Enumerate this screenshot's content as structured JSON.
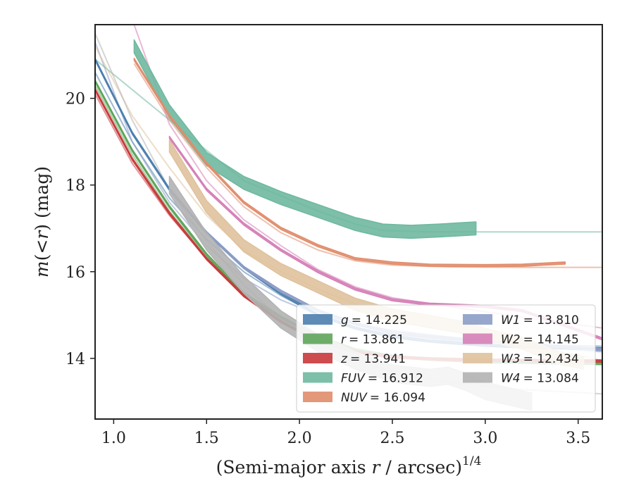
{
  "chart_data": {
    "type": "line",
    "xlabel_main": "(Semi-major axis ",
    "xlabel_r": "r",
    "xlabel_tail": " / arcsec)",
    "xlabel_sup": "1/4",
    "ylabel_m": "m",
    "ylabel_mid": "(<",
    "ylabel_r": "r",
    "ylabel_tail": ") (mag)",
    "xlim": [
      0.9,
      3.63
    ],
    "ylim": [
      21.7,
      12.6
    ],
    "x_inverted": false,
    "y_inverted": true,
    "xticks": [
      1.0,
      1.5,
      2.0,
      2.5,
      3.0,
      3.5
    ],
    "xtick_labels": [
      "1.0",
      "1.5",
      "2.0",
      "2.5",
      "3.0",
      "3.5"
    ],
    "yticks": [
      14,
      16,
      18,
      20
    ],
    "ytick_labels": [
      "14",
      "16",
      "18",
      "20"
    ],
    "grid": false,
    "legend_position": "lower-right",
    "series": [
      {
        "name": "g = 14.225",
        "label_var": "g",
        "label_val": "= 14.225",
        "color": "#4c7fae",
        "band_width": 0.05,
        "data": [
          [
            0.9,
            20.9
          ],
          [
            1.1,
            19.2
          ],
          [
            1.3,
            17.9
          ],
          [
            1.5,
            16.9
          ],
          [
            1.7,
            16.1
          ],
          [
            1.9,
            15.5
          ],
          [
            2.1,
            15.0
          ],
          [
            2.3,
            14.7
          ],
          [
            2.5,
            14.5
          ],
          [
            2.7,
            14.4
          ],
          [
            3.0,
            14.3
          ],
          [
            3.3,
            14.25
          ],
          [
            3.63,
            14.22
          ]
        ],
        "model": [
          [
            0.9,
            20.6
          ],
          [
            1.1,
            19.0
          ],
          [
            1.3,
            17.7
          ],
          [
            1.5,
            16.75
          ],
          [
            1.7,
            16.0
          ],
          [
            1.9,
            15.45
          ],
          [
            2.1,
            15.0
          ],
          [
            2.3,
            14.72
          ],
          [
            2.5,
            14.55
          ],
          [
            2.8,
            14.42
          ],
          [
            3.2,
            14.32
          ],
          [
            3.63,
            14.28
          ]
        ]
      },
      {
        "name": "r = 13.861",
        "label_var": "r",
        "label_val": "= 13.861",
        "color": "#5ea55a",
        "band_width": 0.05,
        "data": [
          [
            0.9,
            20.4
          ],
          [
            1.1,
            18.8
          ],
          [
            1.3,
            17.5
          ],
          [
            1.5,
            16.4
          ],
          [
            1.7,
            15.5
          ],
          [
            1.9,
            14.95
          ],
          [
            2.1,
            14.5
          ],
          [
            2.3,
            14.2
          ],
          [
            2.5,
            14.05
          ],
          [
            2.7,
            13.98
          ],
          [
            3.0,
            13.92
          ],
          [
            3.3,
            13.9
          ],
          [
            3.63,
            13.88
          ]
        ],
        "model": [
          [
            0.9,
            20.3
          ],
          [
            1.1,
            18.7
          ],
          [
            1.3,
            17.4
          ],
          [
            1.5,
            16.35
          ],
          [
            1.7,
            15.5
          ],
          [
            1.9,
            14.95
          ],
          [
            2.1,
            14.5
          ],
          [
            2.3,
            14.2
          ],
          [
            2.5,
            14.05
          ],
          [
            2.8,
            13.97
          ],
          [
            3.2,
            13.92
          ],
          [
            3.63,
            13.9
          ]
        ]
      },
      {
        "name": "z = 13.941",
        "label_var": "z",
        "label_val": "= 13.941",
        "color": "#c9393b",
        "band_width": 0.05,
        "data": [
          [
            0.9,
            20.2
          ],
          [
            1.1,
            18.6
          ],
          [
            1.3,
            17.35
          ],
          [
            1.5,
            16.3
          ],
          [
            1.7,
            15.45
          ],
          [
            1.9,
            14.85
          ],
          [
            2.1,
            14.4
          ],
          [
            2.3,
            14.15
          ],
          [
            2.5,
            14.03
          ],
          [
            2.7,
            13.99
          ],
          [
            3.0,
            13.96
          ],
          [
            3.3,
            13.95
          ],
          [
            3.63,
            13.94
          ]
        ],
        "model": [
          [
            0.9,
            20.1
          ],
          [
            1.1,
            18.5
          ],
          [
            1.3,
            17.3
          ],
          [
            1.5,
            16.3
          ],
          [
            1.7,
            15.45
          ],
          [
            1.9,
            14.85
          ],
          [
            2.1,
            14.42
          ],
          [
            2.3,
            14.15
          ],
          [
            2.5,
            14.05
          ],
          [
            2.8,
            13.99
          ],
          [
            3.2,
            13.96
          ],
          [
            3.63,
            13.94
          ]
        ]
      },
      {
        "name": "FUV = 16.912",
        "label_var": "FUV",
        "label_val": "= 16.912",
        "color": "#6fb8a0",
        "band_width": 0.3,
        "data": [
          [
            1.11,
            21.2
          ],
          [
            1.3,
            19.7
          ],
          [
            1.5,
            18.6
          ],
          [
            1.7,
            18.05
          ],
          [
            1.9,
            17.7
          ],
          [
            2.1,
            17.4
          ],
          [
            2.3,
            17.1
          ],
          [
            2.45,
            16.95
          ],
          [
            2.6,
            16.92
          ],
          [
            2.75,
            16.95
          ],
          [
            2.95,
            17.0
          ]
        ],
        "model": [
          [
            0.9,
            20.9
          ],
          [
            1.1,
            20.2
          ],
          [
            1.3,
            19.5
          ],
          [
            1.5,
            18.8
          ],
          [
            1.7,
            18.1
          ],
          [
            1.9,
            17.75
          ],
          [
            2.1,
            17.4
          ],
          [
            2.3,
            17.1
          ],
          [
            2.45,
            16.95
          ],
          [
            2.7,
            16.92
          ],
          [
            3.2,
            16.92
          ],
          [
            3.63,
            16.92
          ]
        ]
      },
      {
        "name": "NUV = 16.094",
        "label_var": "NUV",
        "label_val": "= 16.094",
        "color": "#e08d6c",
        "band_width": 0.05,
        "data": [
          [
            1.11,
            20.9
          ],
          [
            1.3,
            19.6
          ],
          [
            1.5,
            18.5
          ],
          [
            1.7,
            17.6
          ],
          [
            1.9,
            17.0
          ],
          [
            2.1,
            16.6
          ],
          [
            2.3,
            16.3
          ],
          [
            2.5,
            16.2
          ],
          [
            2.7,
            16.15
          ],
          [
            3.0,
            16.14
          ],
          [
            3.2,
            16.15
          ],
          [
            3.43,
            16.2
          ]
        ],
        "model": [
          [
            1.11,
            20.8
          ],
          [
            1.3,
            19.5
          ],
          [
            1.5,
            18.4
          ],
          [
            1.7,
            17.5
          ],
          [
            1.9,
            16.9
          ],
          [
            2.1,
            16.5
          ],
          [
            2.3,
            16.25
          ],
          [
            2.5,
            16.15
          ],
          [
            2.8,
            16.11
          ],
          [
            3.2,
            16.1
          ],
          [
            3.63,
            16.1
          ]
        ]
      },
      {
        "name": "W1 = 13.810",
        "label_var": "W1",
        "label_val": "= 13.810",
        "color": "#8c9dc6",
        "band_width": 0.05,
        "data": [
          [
            1.3,
            17.9
          ],
          [
            1.5,
            16.9
          ],
          [
            1.7,
            16.1
          ],
          [
            1.9,
            15.55
          ],
          [
            2.1,
            15.1
          ],
          [
            2.3,
            14.8
          ],
          [
            2.5,
            14.6
          ],
          [
            2.7,
            14.5
          ],
          [
            3.0,
            14.4
          ],
          [
            3.3,
            14.3
          ],
          [
            3.63,
            14.2
          ]
        ],
        "model": [
          [
            0.9,
            21.3
          ],
          [
            1.1,
            19.0
          ],
          [
            1.3,
            17.6
          ],
          [
            1.5,
            16.6
          ],
          [
            1.7,
            15.85
          ],
          [
            1.9,
            15.35
          ],
          [
            2.1,
            15.0
          ],
          [
            2.3,
            14.8
          ],
          [
            2.5,
            14.65
          ],
          [
            2.8,
            14.5
          ],
          [
            3.2,
            14.3
          ],
          [
            3.63,
            14.15
          ]
        ]
      },
      {
        "name": "W2 = 14.145",
        "label_var": "W2",
        "label_val": "= 14.145",
        "color": "#d57fb7",
        "band_width": 0.05,
        "data": [
          [
            1.3,
            19.1
          ],
          [
            1.5,
            17.9
          ],
          [
            1.7,
            17.1
          ],
          [
            1.9,
            16.5
          ],
          [
            2.1,
            16.0
          ],
          [
            2.3,
            15.6
          ],
          [
            2.5,
            15.35
          ],
          [
            2.7,
            15.25
          ],
          [
            3.0,
            15.2
          ],
          [
            3.2,
            15.1
          ],
          [
            3.4,
            14.8
          ],
          [
            3.63,
            14.45
          ]
        ],
        "model": [
          [
            1.11,
            21.7
          ],
          [
            1.3,
            19.4
          ],
          [
            1.5,
            18.1
          ],
          [
            1.7,
            17.2
          ],
          [
            1.9,
            16.6
          ],
          [
            2.1,
            16.05
          ],
          [
            2.3,
            15.65
          ],
          [
            2.5,
            15.4
          ],
          [
            2.8,
            15.2
          ],
          [
            3.2,
            14.95
          ],
          [
            3.63,
            14.7
          ]
        ]
      },
      {
        "name": "W3 = 12.434",
        "label_var": "W3",
        "label_val": "= 12.434",
        "color": "#dfc29c",
        "band_width": 0.28,
        "data": [
          [
            1.3,
            18.9
          ],
          [
            1.5,
            17.5
          ],
          [
            1.7,
            16.6
          ],
          [
            1.9,
            16.05
          ],
          [
            2.1,
            15.65
          ],
          [
            2.3,
            15.25
          ],
          [
            2.5,
            15.0
          ],
          [
            2.7,
            14.85
          ],
          [
            2.9,
            14.7
          ],
          [
            3.0,
            14.55
          ],
          [
            3.2,
            14.35
          ],
          [
            3.4,
            14.0
          ],
          [
            3.53,
            13.9
          ]
        ],
        "model": [
          [
            0.9,
            21.2
          ],
          [
            1.1,
            19.6
          ],
          [
            1.3,
            18.4
          ],
          [
            1.5,
            17.3
          ],
          [
            1.7,
            16.5
          ],
          [
            1.9,
            16.0
          ],
          [
            2.1,
            15.6
          ],
          [
            2.3,
            15.25
          ],
          [
            2.5,
            15.0
          ],
          [
            2.8,
            14.75
          ],
          [
            3.2,
            14.35
          ],
          [
            3.63,
            13.95
          ]
        ]
      },
      {
        "name": "W4 = 13.084",
        "label_var": "W4",
        "label_val": "= 13.084",
        "color": "#b3b3b3",
        "band_width": 0.4,
        "data": [
          [
            1.3,
            18.0
          ],
          [
            1.5,
            16.7
          ],
          [
            1.7,
            15.7
          ],
          [
            1.9,
            14.9
          ],
          [
            2.1,
            14.35
          ],
          [
            2.3,
            13.95
          ],
          [
            2.5,
            13.65
          ],
          [
            2.7,
            13.55
          ],
          [
            2.8,
            13.6
          ],
          [
            2.9,
            13.45
          ],
          [
            3.0,
            13.25
          ],
          [
            3.1,
            13.15
          ],
          [
            3.25,
            13.0
          ]
        ],
        "model": [
          [
            0.9,
            21.5
          ],
          [
            1.1,
            19.5
          ],
          [
            1.3,
            17.9
          ],
          [
            1.5,
            16.7
          ],
          [
            1.7,
            15.7
          ],
          [
            1.9,
            14.9
          ],
          [
            2.1,
            14.35
          ],
          [
            2.3,
            13.95
          ],
          [
            2.5,
            13.7
          ],
          [
            2.8,
            13.45
          ],
          [
            3.2,
            13.28
          ],
          [
            3.63,
            13.18
          ]
        ]
      }
    ]
  }
}
